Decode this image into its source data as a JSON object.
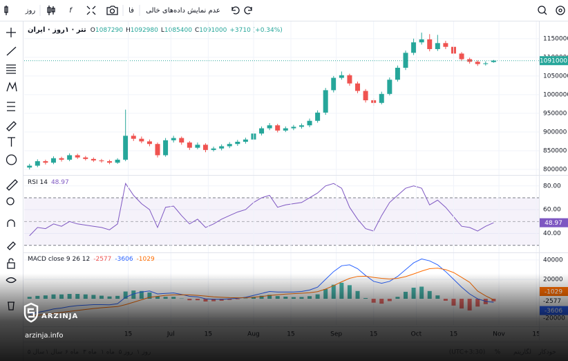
{
  "toolbar": {
    "interval": "روز",
    "language": "فا",
    "empty_data": "عدم نمایش داده‌های خالی"
  },
  "bottom_bar": {
    "ranges": [
      "۵ سال",
      "۱ سال",
      "۶ ماه",
      "۳ ماه",
      "۱ ماه",
      "۵ روز",
      "۱ روز"
    ],
    "timezone": "(UTC+3:30)",
    "options": [
      "%",
      "لگاریتم",
      "خودکار"
    ]
  },
  "watermark": {
    "brand": "ARZINJA",
    "site": "arzinja.info"
  },
  "chart_data": [
    {
      "type": "candlestick",
      "title": "تتر · ۱روز · ایران",
      "ohlc_labels": [
        "O",
        "H",
        "L",
        "C"
      ],
      "change": "+3710 (+0.34%)",
      "up_color": "#26a69a",
      "down_color": "#ef5350",
      "price_line": true,
      "grid": true,
      "x": [
        129,
        132,
        135,
        138,
        141,
        144,
        147,
        150,
        153,
        156,
        159,
        162,
        165,
        168,
        171,
        174,
        177,
        180,
        183,
        186,
        189,
        192,
        195,
        198,
        201,
        204,
        207,
        210,
        213,
        216,
        219,
        222,
        225,
        228,
        231,
        234,
        237,
        240,
        243,
        246,
        249,
        252,
        255,
        258,
        261,
        264,
        267,
        270,
        273,
        276,
        279,
        282,
        285,
        288,
        291,
        294,
        297,
        300,
        303
      ],
      "values": [
        [
          805000,
          815000,
          800000,
          810000
        ],
        [
          810000,
          827000,
          806000,
          822000
        ],
        [
          822000,
          826000,
          813000,
          818000
        ],
        [
          818000,
          835000,
          814000,
          830000
        ],
        [
          830000,
          834000,
          821000,
          826000
        ],
        [
          826000,
          843000,
          822000,
          838000
        ],
        [
          838000,
          842000,
          828000,
          832000
        ],
        [
          832000,
          836000,
          824000,
          828000
        ],
        [
          828000,
          832000,
          820000,
          824000
        ],
        [
          824000,
          828000,
          818000,
          822000
        ],
        [
          822000,
          826000,
          814000,
          818000
        ],
        [
          818000,
          830000,
          815000,
          826000
        ],
        [
          826000,
          960000,
          822000,
          890000
        ],
        [
          890000,
          896000,
          876000,
          882000
        ],
        [
          882000,
          888000,
          870000,
          875000
        ],
        [
          875000,
          880000,
          862000,
          868000
        ],
        [
          868000,
          872000,
          832000,
          838000
        ],
        [
          838000,
          884000,
          834000,
          878000
        ],
        [
          878000,
          890000,
          872000,
          884000
        ],
        [
          884000,
          888000,
          866000,
          872000
        ],
        [
          872000,
          876000,
          852000,
          858000
        ],
        [
          858000,
          872000,
          854000,
          866000
        ],
        [
          866000,
          870000,
          846000,
          852000
        ],
        [
          852000,
          861000,
          848000,
          856000
        ],
        [
          856000,
          867000,
          851000,
          862000
        ],
        [
          862000,
          873000,
          857000,
          868000
        ],
        [
          868000,
          879000,
          863000,
          874000
        ],
        [
          874000,
          885000,
          869000,
          880000
        ],
        [
          880000,
          901000,
          876000,
          896000
        ],
        [
          896000,
          915000,
          891000,
          910000
        ],
        [
          910000,
          924000,
          905000,
          918000
        ],
        [
          918000,
          922000,
          899000,
          904000
        ],
        [
          904000,
          915000,
          900000,
          910000
        ],
        [
          910000,
          919000,
          905000,
          914000
        ],
        [
          914000,
          923000,
          909000,
          918000
        ],
        [
          918000,
          936000,
          913000,
          930000
        ],
        [
          930000,
          958000,
          925000,
          952000
        ],
        [
          952000,
          1018000,
          946000,
          1012000
        ],
        [
          1012000,
          1050000,
          1006000,
          1045000
        ],
        [
          1045000,
          1062000,
          1040000,
          1052000
        ],
        [
          1052000,
          1056000,
          1024000,
          1030000
        ],
        [
          1030000,
          1035000,
          1004000,
          1010000
        ],
        [
          1010000,
          1015000,
          979000,
          985000
        ],
        [
          985000,
          990000,
          970000,
          978000
        ],
        [
          978000,
          1008000,
          974000,
          1002000
        ],
        [
          1002000,
          1046000,
          998000,
          1040000
        ],
        [
          1040000,
          1078000,
          1035000,
          1072000
        ],
        [
          1072000,
          1118000,
          1066000,
          1112000
        ],
        [
          1112000,
          1150000,
          1106000,
          1140000
        ],
        [
          1140000,
          1166000,
          1134000,
          1148000
        ],
        [
          1148000,
          1162000,
          1116000,
          1122000
        ],
        [
          1122000,
          1160000,
          1117000,
          1138000
        ],
        [
          1138000,
          1144000,
          1122000,
          1128000
        ],
        [
          1128000,
          1132000,
          1104000,
          1110000
        ],
        [
          1110000,
          1114000,
          1090000,
          1095000
        ],
        [
          1095000,
          1099000,
          1083000,
          1088000
        ],
        [
          1088000,
          1092000,
          1077000,
          1082000
        ],
        [
          1082000,
          1089000,
          1078000,
          1084000
        ],
        [
          1087290,
          1092980,
          1085400,
          1091000
        ]
      ],
      "xlim": [
        127,
        320
      ],
      "ylim": [
        787000,
        1183000
      ],
      "yticks": [
        800000,
        850000,
        900000,
        950000,
        1000000,
        1050000,
        1100000,
        1150000
      ]
    },
    {
      "type": "line",
      "title": "RSI 14",
      "color": "#7e57c2",
      "band": [
        30,
        70
      ],
      "midline": 50,
      "grid": true,
      "x": [
        129,
        132,
        135,
        138,
        141,
        144,
        147,
        150,
        153,
        156,
        159,
        162,
        165,
        168,
        171,
        174,
        177,
        180,
        183,
        186,
        189,
        192,
        195,
        198,
        201,
        204,
        207,
        210,
        213,
        216,
        219,
        222,
        225,
        228,
        231,
        234,
        237,
        240,
        243,
        246,
        249,
        252,
        255,
        258,
        261,
        264,
        267,
        270,
        273,
        276,
        279,
        282,
        285,
        288,
        291,
        294,
        297,
        300,
        303
      ],
      "values": [
        38,
        45,
        44,
        48,
        46,
        50,
        48,
        47,
        46,
        45,
        43,
        48,
        82,
        72,
        65,
        60,
        45,
        62,
        63,
        55,
        48,
        52,
        45,
        48,
        52,
        55,
        58,
        60,
        66,
        70,
        72,
        62,
        64,
        65,
        66,
        70,
        74,
        80,
        82,
        78,
        62,
        52,
        44,
        42,
        55,
        66,
        72,
        78,
        80,
        78,
        64,
        68,
        62,
        54,
        46,
        45,
        42,
        46,
        48.97
      ],
      "xlim": [
        127,
        320
      ],
      "ylim": [
        24,
        88
      ],
      "yticks": [
        {
          "value": 40,
          "label": "40.00"
        },
        {
          "value": 60,
          "label": "60.00"
        },
        {
          "value": 80,
          "label": "80.00"
        }
      ]
    },
    {
      "type": "combo",
      "title": "MACD close 9 26 12",
      "grid": true,
      "x": [
        129,
        132,
        135,
        138,
        141,
        144,
        147,
        150,
        153,
        156,
        159,
        162,
        165,
        168,
        171,
        174,
        177,
        180,
        183,
        186,
        189,
        192,
        195,
        198,
        201,
        204,
        207,
        210,
        213,
        216,
        219,
        222,
        225,
        228,
        231,
        234,
        237,
        240,
        243,
        246,
        249,
        252,
        255,
        258,
        261,
        264,
        267,
        270,
        273,
        276,
        279,
        282,
        285,
        288,
        291,
        294,
        297,
        300,
        303
      ],
      "series": [
        {
          "style": "bar",
          "color": "#26a69a",
          "negative_color": "#ef5350",
          "values": [
            2000,
            3000,
            3500,
            4500,
            4500,
            5000,
            5000,
            4500,
            4000,
            3200,
            2400,
            3000,
            7500,
            8500,
            8000,
            6500,
            2500,
            2000,
            2000,
            300,
            -1500,
            -1500,
            -2800,
            -2500,
            -2000,
            -1200,
            -500,
            400,
            1900,
            3100,
            4100,
            2800,
            2200,
            1700,
            1800,
            2700,
            4600,
            10000,
            14500,
            16500,
            14000,
            8000,
            800,
            -4000,
            -5000,
            -2400,
            2000,
            7200,
            11400,
            12500,
            8000,
            3500,
            -2000,
            -7000,
            -10000,
            -12000,
            -8000,
            -5500,
            -2577
          ]
        },
        {
          "style": "line",
          "color": "#2962ff",
          "values": [
            -16000,
            -14000,
            -12500,
            -10500,
            -9500,
            -8000,
            -7000,
            -6500,
            -6000,
            -6000,
            -6200,
            -5000,
            1500,
            5000,
            7000,
            8000,
            5000,
            5500,
            6000,
            4500,
            2500,
            2000,
            0,
            -500,
            -500,
            0,
            500,
            1500,
            3500,
            5500,
            7500,
            7000,
            7000,
            7000,
            7500,
            9000,
            12000,
            20000,
            28000,
            34000,
            35000,
            31000,
            24000,
            18000,
            16000,
            18000,
            23000,
            30000,
            37000,
            41000,
            39000,
            35000,
            28000,
            20000,
            12000,
            5000,
            0,
            -2500,
            -3606
          ]
        },
        {
          "style": "line",
          "color": "#ff6d00",
          "values": [
            -18000,
            -17000,
            -16000,
            -15000,
            -14000,
            -13000,
            -12000,
            -11000,
            -10000,
            -9200,
            -8600,
            -8000,
            -6000,
            -3500,
            -1000,
            1500,
            2500,
            3500,
            4000,
            4200,
            4000,
            3500,
            2800,
            2000,
            1500,
            1200,
            1000,
            1100,
            1600,
            2400,
            3400,
            4200,
            4800,
            5300,
            5700,
            6300,
            7400,
            10000,
            13500,
            17500,
            21000,
            23000,
            23200,
            22000,
            21000,
            20400,
            21000,
            22800,
            25600,
            28500,
            31000,
            31500,
            30000,
            27000,
            22000,
            17000,
            8000,
            3000,
            -1029
          ]
        }
      ],
      "xlim": [
        127,
        320
      ],
      "ylim": [
        -27000,
        47000
      ],
      "yticks": [
        -20000,
        20000,
        40000
      ],
      "xticks": [
        {
          "value": 166,
          "label": "15"
        },
        {
          "value": 182,
          "label": "Jul"
        },
        {
          "value": 196,
          "label": "15"
        },
        {
          "value": 213,
          "label": "Aug"
        },
        {
          "value": 227,
          "label": "15"
        },
        {
          "value": 244,
          "label": "Sep"
        },
        {
          "value": 258,
          "label": "15"
        },
        {
          "value": 274,
          "label": "Oct"
        },
        {
          "value": 288,
          "label": "15"
        },
        {
          "value": 305,
          "label": "Nov"
        },
        {
          "value": 319,
          "label": "15"
        }
      ]
    }
  ]
}
